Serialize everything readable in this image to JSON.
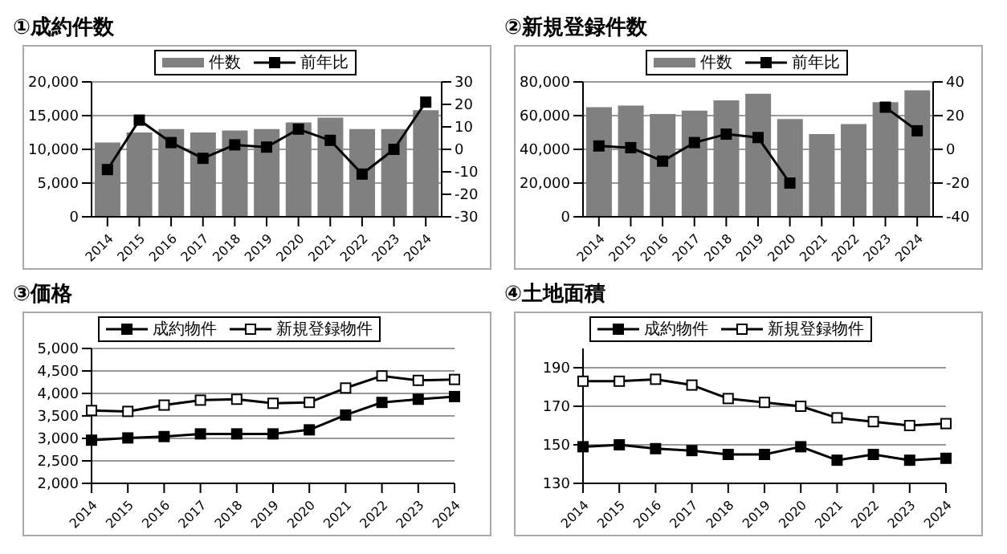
{
  "chart_data": [
    {
      "type": "bar",
      "title": "①成約件数",
      "categories": [
        "2014",
        "2015",
        "2016",
        "2017",
        "2018",
        "2019",
        "2020",
        "2021",
        "2022",
        "2023",
        "2024"
      ],
      "series": [
        {
          "name": "件数",
          "color": "#808080",
          "values": [
            11000,
            12500,
            13000,
            12500,
            12800,
            13000,
            14000,
            14700,
            13000,
            13000,
            15800
          ]
        },
        {
          "name": "前年比",
          "type": "line",
          "axis": "y2",
          "color": "#000000",
          "values": [
            -9,
            13,
            3,
            -4,
            2,
            1,
            9,
            4,
            -11,
            0,
            21
          ]
        }
      ],
      "ylim": [
        0,
        20000
      ],
      "yticks": [
        0,
        {
          "value": 5000,
          "label": "5,000"
        },
        {
          "value": 10000,
          "label": "10,000"
        },
        {
          "value": 15000,
          "label": "15,000"
        },
        {
          "value": 20000,
          "label": "20,000"
        }
      ],
      "y2lim": [
        -30,
        30
      ],
      "y2ticks": [
        -30,
        -20,
        -10,
        0,
        10,
        20,
        30
      ],
      "grid": "y",
      "legend": "top",
      "marker": "square"
    },
    {
      "type": "bar",
      "title": "②新規登録件数",
      "categories": [
        "2014",
        "2015",
        "2016",
        "2017",
        "2018",
        "2019",
        "2020",
        "2021",
        "2022",
        "2023",
        "2024"
      ],
      "series": [
        {
          "name": "件数",
          "color": "#808080",
          "values": [
            65000,
            66000,
            61000,
            63000,
            69000,
            73000,
            58000,
            49000,
            55000,
            68000,
            75000
          ]
        },
        {
          "name": "前年比",
          "type": "line",
          "axis": "y2",
          "color": "#000000",
          "values": [
            2,
            1,
            -7,
            4,
            9,
            7,
            -20,
            null,
            null,
            25,
            11
          ]
        }
      ],
      "ylim": [
        0,
        80000
      ],
      "yticks": [
        0,
        {
          "value": 20000,
          "label": "20,000"
        },
        {
          "value": 40000,
          "label": "40,000"
        },
        {
          "value": 60000,
          "label": "60,000"
        },
        {
          "value": 80000,
          "label": "80,000"
        }
      ],
      "y2lim": [
        -40,
        40
      ],
      "y2ticks": [
        -40,
        -20,
        0,
        20,
        40
      ],
      "grid": "y",
      "legend": "top",
      "marker": "square"
    },
    {
      "type": "line",
      "title": "③価格",
      "categories": [
        "2014",
        "2015",
        "2016",
        "2017",
        "2018",
        "2019",
        "2020",
        "2021",
        "2022",
        "2023",
        "2024"
      ],
      "series": [
        {
          "name": "成約物件",
          "color": "#000000",
          "values": [
            2960,
            3010,
            3040,
            3100,
            3100,
            3100,
            3190,
            3520,
            3800,
            3870,
            3930
          ]
        },
        {
          "name": "新規登録物件",
          "color": "#ffffff",
          "values": [
            3620,
            3600,
            3740,
            3850,
            3870,
            3780,
            3800,
            4120,
            4390,
            4290,
            4310
          ]
        }
      ],
      "ylim": [
        2000,
        5000
      ],
      "yticks": [
        {
          "value": 2000,
          "label": "2,000"
        },
        {
          "value": 2500,
          "label": "2,500"
        },
        {
          "value": 3000,
          "label": "3,000"
        },
        {
          "value": 3500,
          "label": "3,500"
        },
        {
          "value": 4000,
          "label": "4,000"
        },
        {
          "value": 4500,
          "label": "4,500"
        },
        {
          "value": 5000,
          "label": "5,000"
        }
      ],
      "grid": "y",
      "legend": "top",
      "marker": "square"
    },
    {
      "type": "line",
      "title": "④土地面積",
      "categories": [
        "2014",
        "2015",
        "2016",
        "2017",
        "2018",
        "2019",
        "2020",
        "2021",
        "2022",
        "2023",
        "2024"
      ],
      "series": [
        {
          "name": "成約物件",
          "color": "#000000",
          "values": [
            149,
            150,
            148,
            147,
            145,
            145,
            149,
            142,
            145,
            142,
            143
          ]
        },
        {
          "name": "新規登録物件",
          "color": "#ffffff",
          "values": [
            183,
            183,
            184,
            181,
            174,
            172,
            170,
            164,
            162,
            160,
            161
          ]
        }
      ],
      "ylim": [
        130,
        200
      ],
      "yticks": [
        130,
        150,
        170,
        190
      ],
      "grid": "y",
      "legend": "top",
      "marker": "square"
    }
  ]
}
